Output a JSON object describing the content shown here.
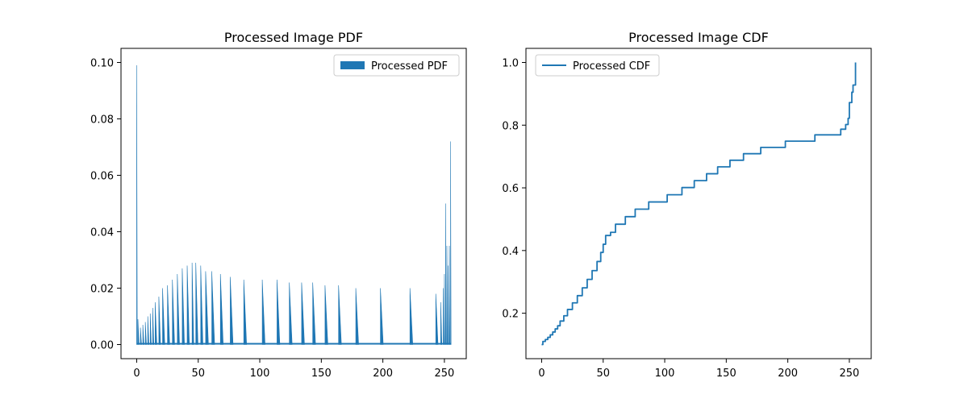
{
  "chart_data": [
    {
      "type": "area",
      "title": "Processed Image PDF",
      "xlabel": "",
      "ylabel": "",
      "xlim": [
        -12.75,
        267.75
      ],
      "ylim": [
        -0.005,
        0.105
      ],
      "xticks": [
        0,
        50,
        100,
        150,
        200,
        250
      ],
      "yticks": [
        0.0,
        0.02,
        0.04,
        0.06,
        0.08,
        0.1
      ],
      "ytick_labels": [
        "0.00",
        "0.02",
        "0.04",
        "0.06",
        "0.08",
        "0.10"
      ],
      "grid": false,
      "legend": "upper right",
      "series": [
        {
          "name": "Processed PDF",
          "color": "#1f77b4",
          "points": [
            [
              0,
              0.099
            ],
            [
              1,
              0.009
            ],
            [
              3,
              0.006
            ],
            [
              5,
              0.007
            ],
            [
              7,
              0.008
            ],
            [
              9,
              0.01
            ],
            [
              11,
              0.011
            ],
            [
              13,
              0.013
            ],
            [
              15,
              0.015
            ],
            [
              18,
              0.017
            ],
            [
              21,
              0.02
            ],
            [
              25,
              0.021
            ],
            [
              29,
              0.023
            ],
            [
              33,
              0.025
            ],
            [
              37,
              0.027
            ],
            [
              41,
              0.028
            ],
            [
              45,
              0.029
            ],
            [
              48,
              0.029
            ],
            [
              52,
              0.028
            ],
            [
              56,
              0.026
            ],
            [
              61,
              0.026
            ],
            [
              68,
              0.025
            ],
            [
              76,
              0.024
            ],
            [
              87,
              0.023
            ],
            [
              102,
              0.023
            ],
            [
              114,
              0.023
            ],
            [
              124,
              0.022
            ],
            [
              134,
              0.022
            ],
            [
              143,
              0.022
            ],
            [
              153,
              0.021
            ],
            [
              164,
              0.021
            ],
            [
              178,
              0.02
            ],
            [
              198,
              0.02
            ],
            [
              222,
              0.02
            ],
            [
              243,
              0.018
            ],
            [
              247,
              0.015
            ],
            [
              249,
              0.02
            ],
            [
              250,
              0.025
            ],
            [
              251,
              0.05
            ],
            [
              252,
              0.035
            ],
            [
              253,
              0.028
            ],
            [
              254,
              0.035
            ],
            [
              255,
              0.072
            ]
          ]
        }
      ]
    },
    {
      "type": "line",
      "title": "Processed Image CDF",
      "xlabel": "",
      "ylabel": "",
      "xlim": [
        -12.75,
        267.75
      ],
      "ylim": [
        0.055,
        1.045
      ],
      "xticks": [
        0,
        50,
        100,
        150,
        200,
        250
      ],
      "yticks": [
        0.2,
        0.4,
        0.6,
        0.8,
        1.0
      ],
      "ytick_labels": [
        "0.2",
        "0.4",
        "0.6",
        "0.8",
        "1.0"
      ],
      "grid": false,
      "legend": "upper left",
      "series": [
        {
          "name": "Processed CDF",
          "color": "#1f77b4",
          "points": [
            [
              0,
              0.1
            ],
            [
              1,
              0.11
            ],
            [
              3,
              0.116
            ],
            [
              5,
              0.123
            ],
            [
              7,
              0.131
            ],
            [
              9,
              0.14
            ],
            [
              11,
              0.15
            ],
            [
              13,
              0.16
            ],
            [
              15,
              0.175
            ],
            [
              18,
              0.192
            ],
            [
              21,
              0.212
            ],
            [
              25,
              0.233
            ],
            [
              29,
              0.256
            ],
            [
              33,
              0.281
            ],
            [
              37,
              0.308
            ],
            [
              41,
              0.336
            ],
            [
              45,
              0.365
            ],
            [
              48,
              0.394
            ],
            [
              50,
              0.42
            ],
            [
              52,
              0.448
            ],
            [
              56,
              0.458
            ],
            [
              60,
              0.484
            ],
            [
              68,
              0.508
            ],
            [
              76,
              0.532
            ],
            [
              87,
              0.555
            ],
            [
              102,
              0.578
            ],
            [
              114,
              0.601
            ],
            [
              124,
              0.623
            ],
            [
              134,
              0.645
            ],
            [
              143,
              0.667
            ],
            [
              153,
              0.688
            ],
            [
              164,
              0.709
            ],
            [
              178,
              0.729
            ],
            [
              198,
              0.749
            ],
            [
              222,
              0.769
            ],
            [
              243,
              0.787
            ],
            [
              247,
              0.802
            ],
            [
              249,
              0.822
            ],
            [
              250,
              0.872
            ],
            [
              252,
              0.905
            ],
            [
              253,
              0.928
            ],
            [
              255,
              1.0
            ]
          ]
        }
      ]
    }
  ]
}
